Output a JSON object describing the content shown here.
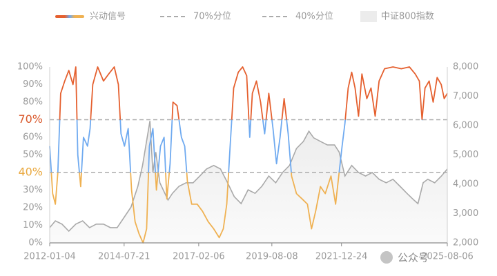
{
  "chart_data": {
    "type": "line",
    "xlim": [
      "2012-01-04",
      "2025-08-06"
    ],
    "xticks": [
      "2012-01-04",
      "2014-07-21",
      "2017-02-06",
      "2019-08-08",
      "2021-12-24",
      "2025-08-06"
    ],
    "ylim": [
      0,
      100
    ],
    "yticks": [
      {
        "value": 0,
        "label": "0%"
      },
      {
        "value": 10,
        "label": "10%"
      },
      {
        "value": 20,
        "label": "20%"
      },
      {
        "value": 30,
        "label": "30%"
      },
      {
        "value": 40,
        "label": "40%"
      },
      {
        "value": 50,
        "label": "50%"
      },
      {
        "value": 60,
        "label": "60%"
      },
      {
        "value": 70,
        "label": "70%"
      },
      {
        "value": 80,
        "label": "80%"
      },
      {
        "value": 90,
        "label": "90%"
      },
      {
        "value": 100,
        "label": "100%"
      }
    ],
    "y2lim": [
      2000,
      8000
    ],
    "y2ticks": [
      {
        "value": 2000,
        "label": "2,000"
      },
      {
        "value": 3000,
        "label": "3,000"
      },
      {
        "value": 4000,
        "label": "4,000"
      },
      {
        "value": 5000,
        "label": "5,000"
      },
      {
        "value": 6000,
        "label": "6,000"
      },
      {
        "value": 7000,
        "label": "7,000"
      },
      {
        "value": 8000,
        "label": "8,000"
      }
    ],
    "thresholds": [
      {
        "name": "70%分位",
        "value": 70,
        "color": "#ababab",
        "label_color": "#d9582b"
      },
      {
        "name": "40%分位",
        "value": 40,
        "color": "#ababab",
        "label_color": "#e9a73c"
      }
    ],
    "series": [
      {
        "name": "兴动信号",
        "axis": "y",
        "band_colors": [
          "#e5602f",
          "#6faaf0",
          "#efb152"
        ],
        "x": [
          "2012-01-04",
          "2012-02-10",
          "2012-03-15",
          "2012-04-15",
          "2012-05-20",
          "2012-07-10",
          "2012-08-30",
          "2012-10-20",
          "2012-11-25",
          "2012-12-20",
          "2013-01-25",
          "2013-02-28",
          "2013-04-20",
          "2013-05-22",
          "2013-06-25",
          "2013-08-25",
          "2013-11-05",
          "2014-01-10",
          "2014-03-20",
          "2014-05-10",
          "2014-06-12",
          "2014-07-25",
          "2014-09-10",
          "2014-10-22",
          "2014-12-05",
          "2015-01-25",
          "2015-03-15",
          "2015-04-28",
          "2015-06-01",
          "2015-07-15",
          "2015-08-28",
          "2015-10-18",
          "2015-12-02",
          "2016-01-05",
          "2016-02-15",
          "2016-03-22",
          "2016-05-12",
          "2016-07-05",
          "2016-08-15",
          "2016-09-18",
          "2016-11-10",
          "2017-01-18",
          "2017-03-25",
          "2017-06-05",
          "2017-08-12",
          "2017-10-20",
          "2017-12-10",
          "2018-01-22",
          "2018-03-05",
          "2018-04-18",
          "2018-06-15",
          "2018-08-08",
          "2018-09-28",
          "2018-11-05",
          "2018-12-08",
          "2019-01-28",
          "2019-03-20",
          "2019-05-10",
          "2019-07-01",
          "2019-08-22",
          "2019-10-05",
          "2019-11-18",
          "2020-01-08",
          "2020-02-28",
          "2020-04-10",
          "2020-06-10",
          "2020-08-20",
          "2020-10-25",
          "2020-12-15",
          "2021-02-05",
          "2021-04-05",
          "2021-06-05",
          "2021-08-15",
          "2021-10-12",
          "2021-11-25",
          "2022-01-01",
          "2022-02-05",
          "2022-03-18",
          "2022-05-01",
          "2022-06-12",
          "2022-07-25",
          "2022-09-05",
          "2022-11-05",
          "2022-12-28",
          "2023-02-18",
          "2023-04-08",
          "2023-06-15",
          "2023-09-28",
          "2024-01-10",
          "2024-04-20",
          "2024-07-01",
          "2024-08-22",
          "2024-09-25",
          "2024-11-01",
          "2024-12-22",
          "2025-02-10",
          "2025-04-01",
          "2025-05-22",
          "2025-06-28",
          "2025-08-06"
        ],
        "values": [
          55,
          28,
          22,
          40,
          85,
          92,
          98,
          90,
          100,
          50,
          32,
          60,
          55,
          65,
          90,
          100,
          92,
          96,
          100,
          90,
          62,
          55,
          65,
          30,
          12,
          5,
          0,
          8,
          55,
          65,
          30,
          55,
          60,
          25,
          45,
          80,
          78,
          60,
          55,
          35,
          22,
          22,
          18,
          12,
          8,
          3,
          8,
          22,
          55,
          88,
          97,
          100,
          95,
          60,
          85,
          92,
          80,
          62,
          85,
          65,
          45,
          60,
          82,
          62,
          38,
          28,
          25,
          22,
          8,
          18,
          32,
          28,
          38,
          22,
          40,
          55,
          68,
          88,
          97,
          88,
          72,
          96,
          82,
          88,
          72,
          92,
          99,
          100,
          99,
          100,
          96,
          92,
          70,
          88,
          92,
          80,
          94,
          90,
          82,
          85
        ]
      },
      {
        "name": "中证800指数",
        "axis": "y2",
        "color": "#a9a9a9",
        "area_color": "#ececec",
        "x": [
          "2012-01-04",
          "2012-03-15",
          "2012-06-05",
          "2012-08-30",
          "2012-11-25",
          "2013-02-18",
          "2013-05-15",
          "2013-08-08",
          "2013-11-05",
          "2014-01-30",
          "2014-04-25",
          "2014-07-21",
          "2014-10-15",
          "2015-01-08",
          "2015-03-08",
          "2015-06-08",
          "2015-07-15",
          "2015-08-20",
          "2015-10-10",
          "2016-01-20",
          "2016-03-15",
          "2016-06-05",
          "2016-09-01",
          "2016-11-28",
          "2017-02-20",
          "2017-05-15",
          "2017-08-12",
          "2017-11-05",
          "2018-02-01",
          "2018-04-25",
          "2018-07-20",
          "2018-10-15",
          "2019-01-10",
          "2019-04-05",
          "2019-07-01",
          "2019-09-25",
          "2019-12-20",
          "2020-03-15",
          "2020-06-10",
          "2020-09-05",
          "2020-11-12",
          "2021-01-12",
          "2021-04-05",
          "2021-07-01",
          "2021-09-28",
          "2021-11-25",
          "2022-02-05",
          "2022-05-01",
          "2022-07-25",
          "2022-10-20",
          "2023-01-12",
          "2023-04-08",
          "2023-07-05",
          "2023-09-28",
          "2023-12-25",
          "2024-03-20",
          "2024-06-15",
          "2024-08-05",
          "2024-10-08",
          "2024-12-05",
          "2025-03-01",
          "2025-05-25",
          "2025-08-06"
        ],
        "values": [
          2520,
          2750,
          2640,
          2400,
          2640,
          2750,
          2520,
          2640,
          2640,
          2520,
          2520,
          2870,
          3220,
          3930,
          4640,
          6160,
          4400,
          5100,
          4050,
          3460,
          3690,
          3930,
          4050,
          4050,
          4280,
          4520,
          4640,
          4520,
          4050,
          3580,
          3340,
          3810,
          3690,
          3930,
          4280,
          4050,
          4400,
          4640,
          5220,
          5460,
          5810,
          5580,
          5460,
          5340,
          5340,
          5100,
          4280,
          4640,
          4400,
          4280,
          4400,
          4170,
          4050,
          4170,
          3930,
          3690,
          3460,
          3340,
          4050,
          4170,
          4050,
          4280,
          4520
        ]
      }
    ],
    "watermark": "公众号"
  }
}
